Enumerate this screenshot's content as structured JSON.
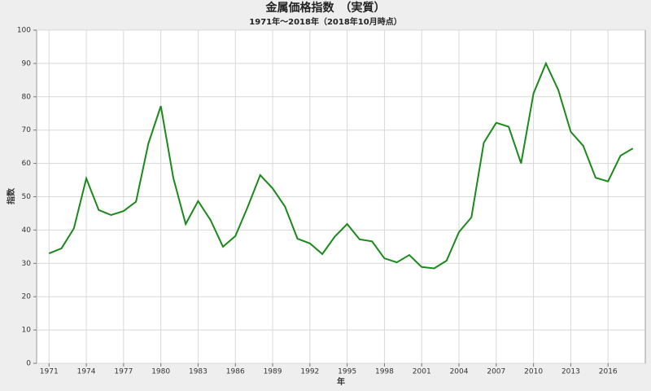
{
  "chart_data": {
    "type": "line",
    "title": "金属価格指数　（実質）",
    "subtitle": "1971年～2018年（2018年10月時点）",
    "x_label": "年",
    "y_label": "指数",
    "x": [
      1971,
      1972,
      1973,
      1974,
      1975,
      1976,
      1977,
      1978,
      1979,
      1980,
      1981,
      1982,
      1983,
      1984,
      1985,
      1986,
      1987,
      1988,
      1989,
      1990,
      1991,
      1992,
      1993,
      1994,
      1995,
      1996,
      1997,
      1998,
      1999,
      2000,
      2001,
      2002,
      2003,
      2004,
      2005,
      2006,
      2007,
      2008,
      2009,
      2010,
      2011,
      2012,
      2013,
      2014,
      2015,
      2016,
      2017,
      2018
    ],
    "series": [
      {
        "name": "指数",
        "color": "#1a8a1a",
        "values": [
          33,
          34.5,
          40.5,
          55.5,
          46,
          44.5,
          45.7,
          48.5,
          66,
          77.2,
          55.7,
          41.8,
          48.7,
          43,
          35,
          38.2,
          47,
          56.5,
          52.5,
          47,
          37.4,
          36,
          32.8,
          38,
          41.8,
          37.2,
          36.6,
          31.5,
          30.3,
          32.5,
          28.9,
          28.5,
          30.8,
          39.4,
          43.8,
          66.2,
          72.2,
          71,
          60,
          81,
          90,
          82,
          69.5,
          65.3,
          55.7,
          54.6,
          62.3,
          64.5
        ]
      }
    ],
    "xlim": [
      1970,
      2019
    ],
    "xticks": [
      1971,
      1974,
      1977,
      1980,
      1983,
      1986,
      1989,
      1992,
      1995,
      1998,
      2001,
      2004,
      2007,
      2010,
      2013,
      2016
    ],
    "ylim": [
      0,
      100
    ],
    "yticks": [
      0,
      10,
      20,
      30,
      40,
      50,
      60,
      70,
      80,
      90,
      100
    ],
    "grid": true
  }
}
